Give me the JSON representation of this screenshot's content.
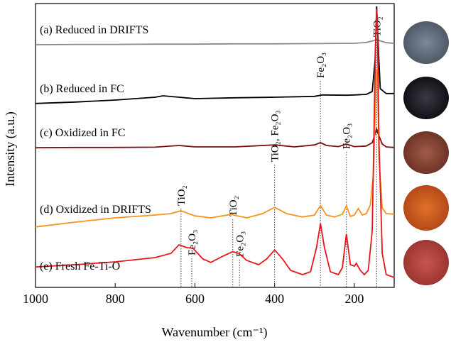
{
  "chart_data": {
    "type": "line",
    "x_label": "Wavenumber (cm⁻¹)",
    "y_label": "Intensity (a.u.)",
    "xlim": [
      1000,
      100
    ],
    "xticks": [
      1000,
      800,
      600,
      400,
      200
    ],
    "ylim": [
      0,
      100
    ],
    "series": [
      {
        "name": "(a) Reduced in DRIFTS",
        "color": "#8c8c8c",
        "x": [
          1000,
          900,
          800,
          700,
          600,
          500,
          400,
          300,
          200,
          170,
          150,
          144,
          138,
          120,
          100
        ],
        "values": [
          85.5,
          85.6,
          85.6,
          85.7,
          85.7,
          85.8,
          85.8,
          85.9,
          86,
          86.3,
          87,
          87.5,
          87,
          86.2,
          86
        ]
      },
      {
        "name": "(b) Reduced in FC",
        "color": "#000000",
        "x": [
          1000,
          900,
          800,
          700,
          680,
          600,
          500,
          400,
          300,
          280,
          220,
          200,
          170,
          155,
          148,
          144,
          140,
          135,
          120,
          100
        ],
        "values": [
          64.8,
          65.3,
          66,
          67,
          67.5,
          66.5,
          66.8,
          67,
          67.3,
          67.8,
          67.7,
          67.8,
          68,
          69,
          80,
          99,
          85,
          70,
          68.3,
          68.3
        ]
      },
      {
        "name": "(c) Oxidized in FC",
        "color": "#7b1010",
        "x": [
          1000,
          900,
          800,
          700,
          640,
          600,
          500,
          400,
          350,
          300,
          285,
          270,
          240,
          220,
          200,
          170,
          155,
          148,
          144,
          140,
          130,
          120,
          100
        ],
        "values": [
          49.2,
          49.3,
          49.3,
          49.4,
          50,
          49.5,
          49.5,
          50.2,
          49.5,
          50.2,
          51,
          50,
          49.6,
          50.5,
          49.6,
          49.8,
          51,
          54,
          55.8,
          54,
          50.5,
          49.5,
          49.3
        ]
      },
      {
        "name": "(d) Oxidized in DRIFTS",
        "color": "#f7931e",
        "x": [
          1000,
          900,
          800,
          700,
          660,
          635,
          600,
          560,
          510,
          470,
          430,
          400,
          370,
          330,
          300,
          285,
          270,
          250,
          230,
          220,
          210,
          200,
          190,
          180,
          170,
          160,
          152,
          146,
          144,
          142,
          138,
          130,
          120,
          100
        ],
        "values": [
          21.3,
          23,
          24.5,
          25.5,
          26,
          27,
          25.2,
          24.5,
          25.7,
          24.5,
          26,
          28.2,
          26,
          24.8,
          25.5,
          28.8,
          25.5,
          24.8,
          25.8,
          28.8,
          25,
          25.5,
          27.8,
          25.5,
          26,
          29,
          40,
          70,
          77,
          72,
          45,
          28,
          26,
          25.8
        ]
      },
      {
        "name": "(e) Fresh Fe-Ti-O",
        "color": "#e8161a",
        "x": [
          1000,
          900,
          800,
          700,
          660,
          640,
          620,
          605,
          580,
          560,
          530,
          505,
          490,
          470,
          440,
          420,
          400,
          380,
          360,
          330,
          310,
          295,
          285,
          275,
          260,
          240,
          230,
          220,
          210,
          200,
          195,
          185,
          175,
          165,
          155,
          150,
          146,
          144,
          142,
          138,
          130,
          120,
          100
        ],
        "values": [
          7.2,
          8,
          9,
          10.5,
          12,
          15,
          14,
          13.8,
          10,
          8.8,
          11,
          12.6,
          12,
          9.5,
          8,
          10,
          13.2,
          10,
          6,
          4.5,
          5.5,
          14,
          22.5,
          14,
          5.5,
          4.5,
          7,
          18.8,
          8,
          7.5,
          8.5,
          6,
          4.5,
          6,
          20,
          60,
          90,
          98,
          92,
          50,
          12,
          4.5,
          3.5
        ]
      }
    ],
    "annotations": [
      {
        "x": 144,
        "text": "TiO₂"
      },
      {
        "x": 400,
        "text": "TiO₂, Fe₂O₃"
      },
      {
        "x": 285,
        "text": "Fe₂O₃"
      },
      {
        "x": 220,
        "text": "Fe₂O₃"
      },
      {
        "x": 635,
        "text": "TiO₂"
      },
      {
        "x": 505,
        "text": "TiO₂"
      },
      {
        "x": 608,
        "text": "Fe₂O₃"
      },
      {
        "x": 488,
        "text": "Fe₂O₃"
      }
    ]
  }
}
